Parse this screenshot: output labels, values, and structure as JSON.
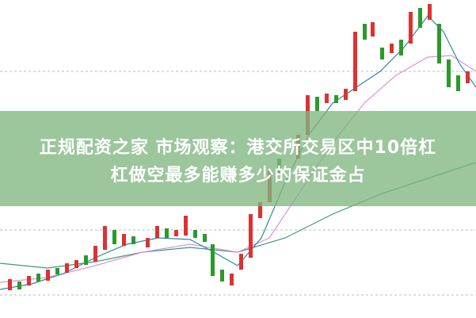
{
  "title": {
    "line1": "正规配资之家 市场观察：港交所交易区中10倍杠",
    "line2": "杠做空最多能赚多少的保证金占"
  }
}
